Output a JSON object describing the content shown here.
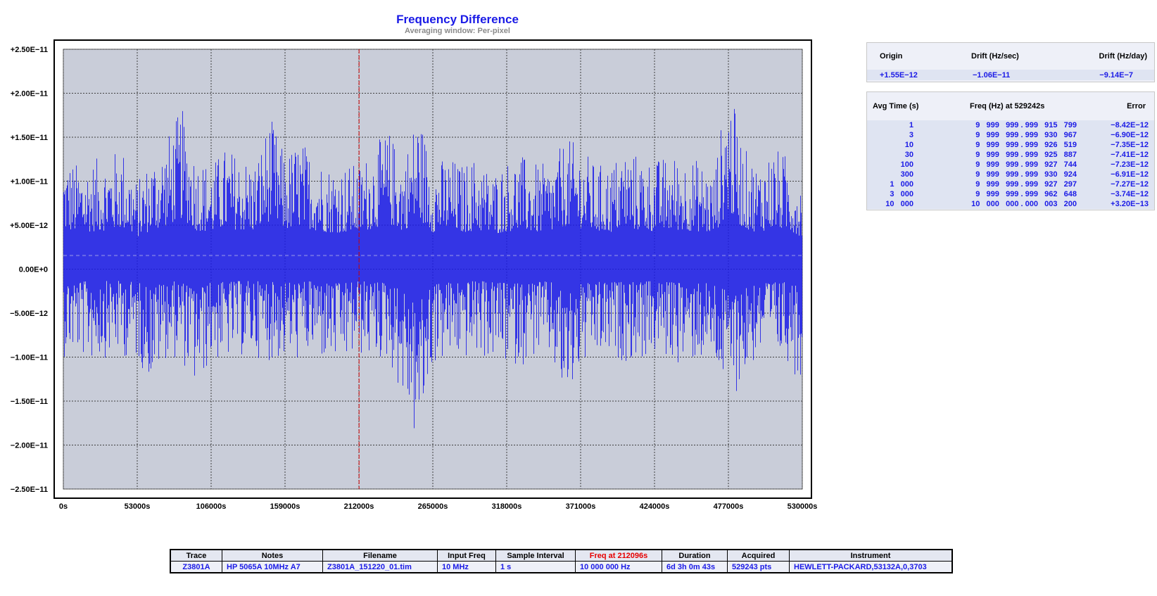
{
  "chart_data": {
    "type": "line",
    "title": "Frequency Difference",
    "subtitle": "Averaging window: Per-pixel",
    "y_ticks": [
      "+2.50E−11",
      "+2.00E−11",
      "+1.50E−11",
      "+1.00E−11",
      "+5.00E−12",
      "0.00E+0",
      "−5.00E−12",
      "−1.00E−11",
      "−1.50E−11",
      "−2.00E−11",
      "−2.50E−11"
    ],
    "x_ticks": [
      "0s",
      "53000s",
      "106000s",
      "159000s",
      "212000s",
      "265000s",
      "318000s",
      "371000s",
      "424000s",
      "477000s",
      "530000s"
    ],
    "xlim": [
      0,
      530000
    ],
    "ylim": [
      -2.5e-11,
      2.5e-11
    ],
    "grid": true,
    "cursor_x": 212096,
    "mean_line": 1.55e-12,
    "series": [
      {
        "color": "#1a1ae6",
        "x": [
          0,
          10600,
          21200,
          31800,
          42400,
          53000,
          63600,
          74200,
          84800,
          95400,
          106000,
          116600,
          127200,
          137800,
          148400,
          159000,
          169600,
          180200,
          190800,
          201400,
          212000,
          222600,
          233200,
          243800,
          254400,
          265000,
          275600,
          286200,
          296800,
          307400,
          318000,
          328600,
          339200,
          349800,
          360400,
          371000,
          381600,
          392200,
          402800,
          413400,
          424000,
          434600,
          445200,
          455800,
          466400,
          477000,
          487600,
          498200,
          508800,
          519400,
          530000
        ],
        "y_max": [
          1.3e-11,
          1.2e-11,
          1.25e-11,
          1.3e-11,
          1.4e-11,
          1e-11,
          1.3e-11,
          1.5e-11,
          1.85e-11,
          1.3e-11,
          1.2e-11,
          1.4e-11,
          1.3e-11,
          1.25e-11,
          1.75e-11,
          1.3e-11,
          1.5e-11,
          1.3e-11,
          1.2e-11,
          1.2e-11,
          1.2e-11,
          1.4e-11,
          1.6e-11,
          1.25e-11,
          1.85e-11,
          1.2e-11,
          1.3e-11,
          1.2e-11,
          1.3e-11,
          1.1e-11,
          1.25e-11,
          1.3e-11,
          1.2e-11,
          1.2e-11,
          1.5e-11,
          1.4e-11,
          1.2e-11,
          1.2e-11,
          1.4e-11,
          1.3e-11,
          1.25e-11,
          1.3e-11,
          1.3e-11,
          1.25e-11,
          1.1e-11,
          2.15e-11,
          1.4e-11,
          1.2e-11,
          1.4e-11,
          1.3e-11,
          1e-11
        ],
        "y_min": [
          -1e-11,
          -1e-11,
          -1.05e-11,
          -1e-11,
          -1e-11,
          -1.05e-11,
          -1.3e-11,
          -1e-11,
          -1.05e-11,
          -1.4e-11,
          -1.05e-11,
          -1.05e-11,
          -1e-11,
          -1e-11,
          -1.05e-11,
          -1.05e-11,
          -1.05e-11,
          -1e-11,
          -1.1e-11,
          -1.1e-11,
          -1e-11,
          -1.05e-11,
          -1.05e-11,
          -1.5e-11,
          -2.1e-11,
          -1.1e-11,
          -1.05e-11,
          -1.05e-11,
          -1e-11,
          -1.05e-11,
          -1.1e-11,
          -1.1e-11,
          -1e-11,
          -1.05e-11,
          -1.65e-11,
          -1.15e-11,
          -1.05e-11,
          -1.05e-11,
          -1.05e-11,
          -1.05e-11,
          -1e-11,
          -1.05e-11,
          -1.1e-11,
          -1.05e-11,
          -1.1e-11,
          -1.5e-11,
          -1.3e-11,
          -1e-11,
          -1.05e-11,
          -1.05e-11,
          -1.35e-11
        ]
      }
    ]
  },
  "drift": {
    "headers": [
      "Origin",
      "Drift (Hz/sec)",
      "Drift (Hz/day)"
    ],
    "values": [
      "+1.55E−12",
      "−1.06E−11",
      "−9.14E−7"
    ]
  },
  "avg_table": {
    "headers": [
      "Avg Time (s)",
      "Freq (Hz) at 529242s",
      "Error"
    ],
    "rows": [
      [
        "1",
        "9   999   999 . 999   915   799",
        "−8.42E−12"
      ],
      [
        "3",
        "9   999   999 . 999   930   967",
        "−6.90E−12"
      ],
      [
        "10",
        "9   999   999 . 999   926   519",
        "−7.35E−12"
      ],
      [
        "30",
        "9   999   999 . 999   925   887",
        "−7.41E−12"
      ],
      [
        "100",
        "9   999   999 . 999   927   744",
        "−7.23E−12"
      ],
      [
        "300",
        "9   999   999 . 999   930   924",
        "−6.91E−12"
      ],
      [
        "1   000",
        "9   999   999 . 999   927   297",
        "−7.27E−12"
      ],
      [
        "3   000",
        "9   999   999 . 999   962   648",
        "−3.74E−12"
      ],
      [
        "10   000",
        "10   000   000 . 000   003   200",
        "+3.20E−13"
      ]
    ]
  },
  "info": {
    "headers": [
      "Trace",
      "Notes",
      "Filename",
      "Input Freq",
      "Sample Interval",
      "Freq at 212096s",
      "Duration",
      "Acquired",
      "Instrument"
    ],
    "values": [
      "Z3801A",
      "HP 5065A 10MHz A7",
      "Z3801A_151220_01.tim",
      "10 MHz",
      "1 s",
      "10 000 000 Hz",
      "6d 3h 0m 43s",
      "529243 pts",
      "HEWLETT-PACKARD,53132A,0,3703"
    ]
  }
}
